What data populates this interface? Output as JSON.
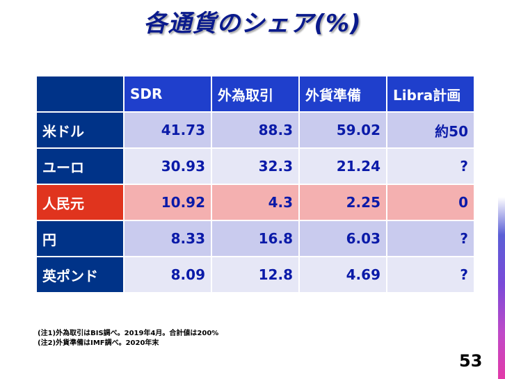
{
  "title": "各通貨のシェア(%)",
  "table": {
    "headers": [
      "SDR",
      "外為取引",
      "外貨準備",
      "Libra計画"
    ],
    "rows": [
      {
        "label": "米ドル",
        "cells": [
          "41.73",
          "88.3",
          "59.02",
          "約50"
        ]
      },
      {
        "label": "ユーロ",
        "cells": [
          "30.93",
          "32.3",
          "21.24",
          "?"
        ]
      },
      {
        "label": "人民元",
        "cells": [
          "10.92",
          "4.3",
          "2.25",
          "0"
        ]
      },
      {
        "label": "円",
        "cells": [
          "8.33",
          "16.8",
          "6.03",
          "?"
        ]
      },
      {
        "label": "英ポンド",
        "cells": [
          "8.09",
          "12.8",
          "4.69",
          "?"
        ]
      }
    ]
  },
  "notes": [
    "(注1)外為取引はBIS調べ。2019年4月。合計値は200%",
    "(注2)外貨準備はIMF調べ。2020年末"
  ],
  "page_number": "53",
  "colors": {
    "title": "#0a1a8c",
    "header_bg": "#1f3fcc",
    "rowhead_bg": "#003388",
    "highlight_row": "#e0341e"
  }
}
